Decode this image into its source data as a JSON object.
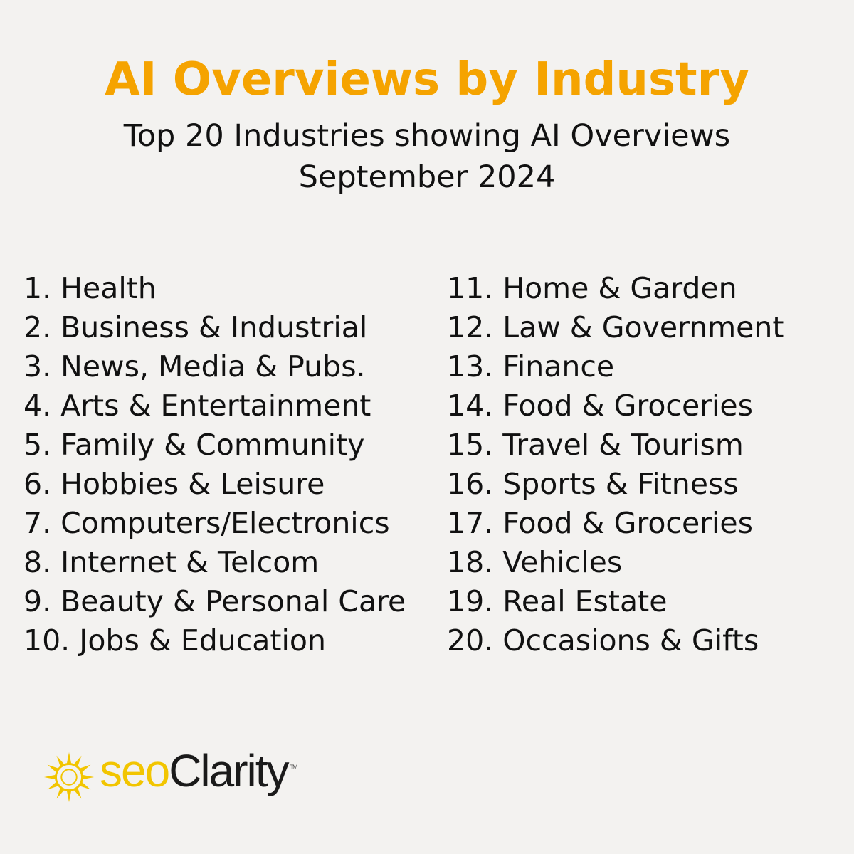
{
  "header": {
    "title": "AI Overviews by Industry",
    "subtitle": "Top 20 Industries showing AI Overviews",
    "date": "September 2024"
  },
  "industries_left": [
    "1. Health",
    "2. Business & Industrial",
    "3. News, Media & Pubs.",
    "4. Arts & Entertainment",
    "5. Family & Community",
    "6. Hobbies & Leisure",
    "7. Computers/Electronics",
    "8. Internet & Telcom",
    "9. Beauty & Personal Care",
    "10. Jobs & Education"
  ],
  "industries_right": [
    "11. Home & Garden",
    "12. Law & Government",
    "13. Finance",
    "14. Food & Groceries",
    "15. Travel & Tourism",
    "16. Sports & Fitness",
    "17. Food & Groceries",
    "18. Vehicles",
    "19. Real Estate",
    "20. Occasions & Gifts"
  ],
  "logo": {
    "part1": "seo",
    "part2": "Clarity",
    "trademark": "TM",
    "icon": "sun-icon"
  },
  "colors": {
    "background": "#f3f2f0",
    "title": "#f5a300",
    "text": "#111111",
    "logo_yellow": "#f2c500"
  }
}
